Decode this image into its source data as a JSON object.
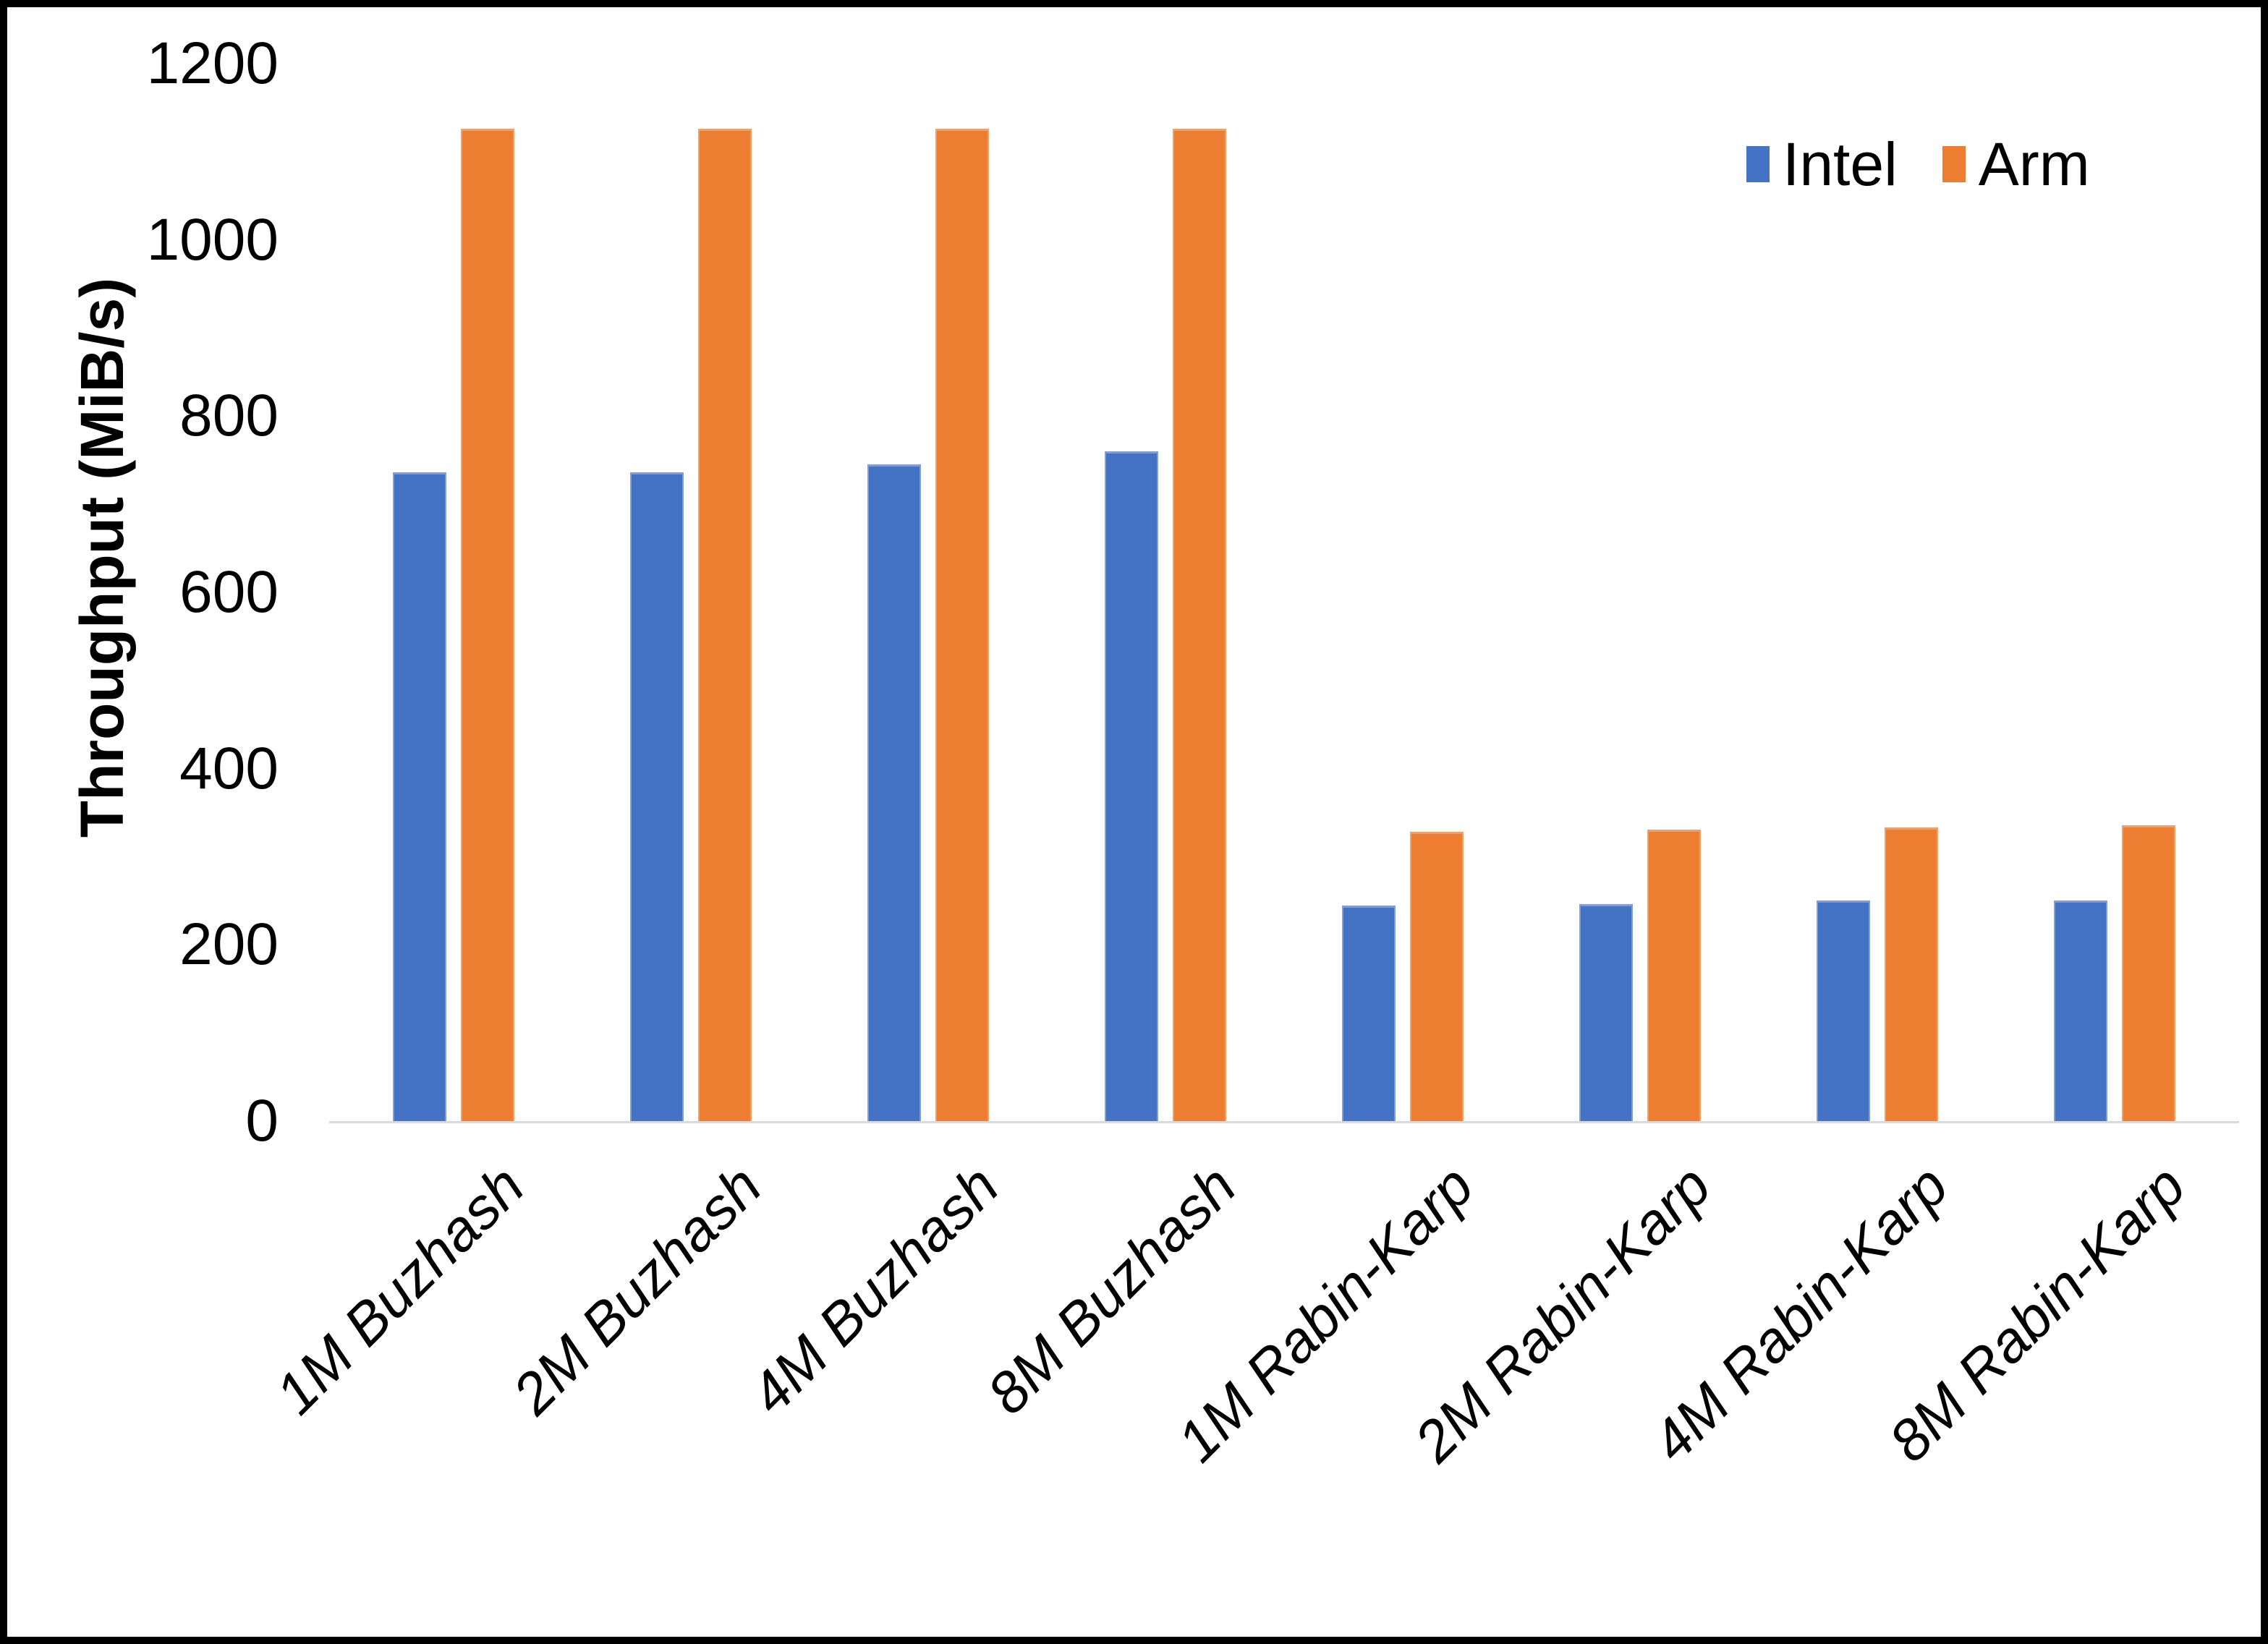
{
  "chart_data": {
    "type": "bar",
    "title": "",
    "xlabel": "",
    "ylabel": "Throughput (MiB/s)",
    "ylim": [
      0,
      1200
    ],
    "yticks": [
      0,
      200,
      400,
      600,
      800,
      1000,
      1200
    ],
    "grid": false,
    "background": "#ffffff",
    "axis_line_color": "#d9d9d9",
    "text_color": "#000000",
    "legend_position": "top-right",
    "categories": [
      "1M Buzhash",
      "2M Buzhash",
      "4M Buzhash",
      "8M Buzhash",
      "1M Rabin-Karp",
      "2M Rabin-Karp",
      "4M Rabin-Karp",
      "8M Rabin-Karp"
    ],
    "series": [
      {
        "name": "Intel",
        "color": "#4472c4",
        "border_color": "#7f9ed8",
        "values": [
          736,
          736,
          745,
          760,
          245,
          246,
          250,
          250
        ]
      },
      {
        "name": "Arm",
        "color": "#ed7d31",
        "border_color": "#f2a065",
        "values": [
          1126,
          1126,
          1126,
          1126,
          328,
          331,
          333,
          336
        ]
      }
    ]
  }
}
